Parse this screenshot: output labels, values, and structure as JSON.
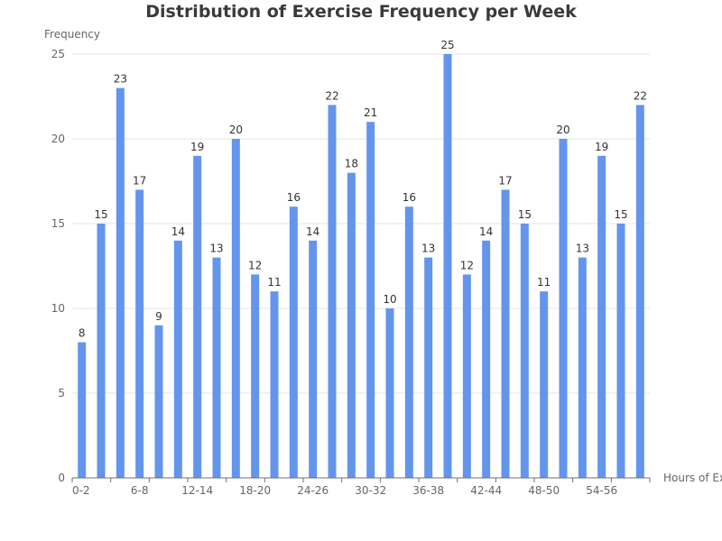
{
  "chart_data": {
    "type": "bar",
    "title": "Distribution of Exercise Frequency per Week",
    "xlabel": "Hours of Exercise",
    "ylabel": "Frequency",
    "ylim": [
      0,
      25
    ],
    "yticks": [
      0,
      5,
      10,
      15,
      20,
      25
    ],
    "grid": true,
    "legend": "none",
    "categories": [
      "0-2",
      "2-4",
      "4-6",
      "6-8",
      "8-10",
      "10-12",
      "12-14",
      "14-16",
      "16-18",
      "18-20",
      "20-22",
      "22-24",
      "24-26",
      "26-28",
      "28-30",
      "30-32",
      "32-34",
      "34-36",
      "36-38",
      "38-40",
      "40-42",
      "42-44",
      "44-46",
      "46-48",
      "48-50",
      "50-52",
      "52-54",
      "54-56",
      "56-58",
      "58-60"
    ],
    "visible_category_labels": [
      "0-2",
      "6-8",
      "12-14",
      "18-20",
      "24-26",
      "30-32",
      "36-38",
      "42-44",
      "48-50",
      "54-56"
    ],
    "values": [
      8,
      15,
      23,
      17,
      9,
      14,
      19,
      13,
      20,
      12,
      11,
      16,
      14,
      22,
      18,
      21,
      10,
      16,
      13,
      25,
      12,
      14,
      17,
      15,
      11,
      20,
      13,
      19,
      15,
      22
    ],
    "bar_color": "#6495ED"
  }
}
